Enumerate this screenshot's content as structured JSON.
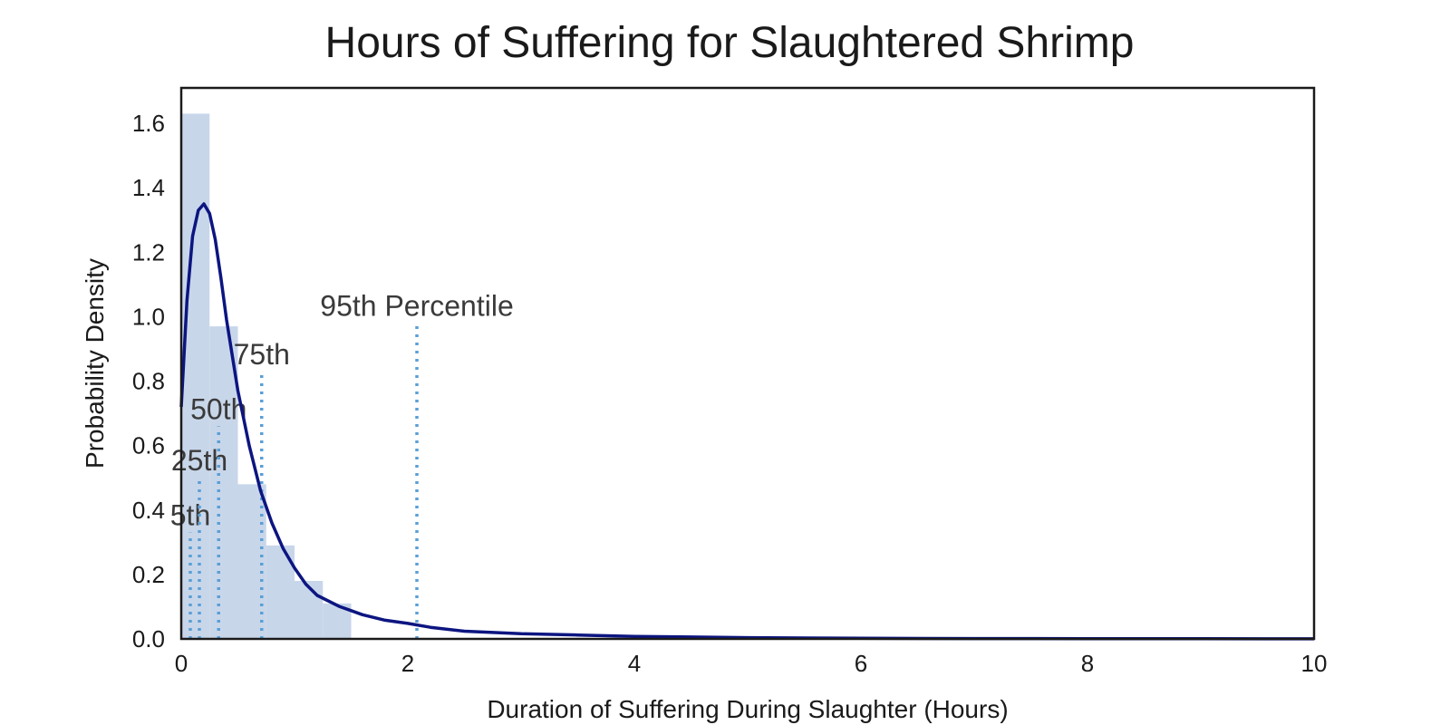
{
  "chart_data": {
    "type": "bar",
    "title": "Hours of Suffering for Slaughtered Shrimp",
    "xlabel": "Duration of Suffering During Slaughter (Hours)",
    "ylabel": "Probability Density",
    "xlim": [
      0,
      10
    ],
    "ylim": [
      0,
      1.71
    ],
    "xticks": [
      "0",
      "2",
      "4",
      "6",
      "8",
      "10"
    ],
    "yticks": [
      "0.0",
      "0.2",
      "0.4",
      "0.6",
      "0.8",
      "1.0",
      "1.2",
      "1.4",
      "1.6"
    ],
    "grid": false,
    "histogram": {
      "bin_width": 0.25,
      "bin_starts": [
        0,
        0.25,
        0.5,
        0.75,
        1.0,
        1.25
      ],
      "values": [
        1.63,
        0.97,
        0.48,
        0.29,
        0.18,
        0.11
      ],
      "color": "#c8d6ea"
    },
    "density_curve": {
      "color": "#0c1580",
      "x": [
        0,
        0.05,
        0.1,
        0.15,
        0.2,
        0.25,
        0.3,
        0.35,
        0.4,
        0.5,
        0.6,
        0.7,
        0.8,
        0.9,
        1.0,
        1.1,
        1.2,
        1.4,
        1.6,
        1.8,
        2.0,
        2.2,
        2.5,
        3.0,
        3.5,
        4.0,
        5.0,
        6.0,
        7.0,
        8.0,
        9.0,
        10.0
      ],
      "y": [
        0.72,
        1.05,
        1.25,
        1.33,
        1.35,
        1.32,
        1.24,
        1.12,
        0.99,
        0.77,
        0.6,
        0.46,
        0.36,
        0.28,
        0.22,
        0.17,
        0.135,
        0.1,
        0.075,
        0.058,
        0.048,
        0.036,
        0.024,
        0.016,
        0.012,
        0.008,
        0.004,
        0.002,
        0.001,
        0.0008,
        0.0005,
        0.0003
      ]
    },
    "percentiles": {
      "color": "#5a9fd6",
      "items": [
        {
          "label": "5th",
          "x": 0.08,
          "height": 0.33
        },
        {
          "label": "25th",
          "x": 0.16,
          "height": 0.5
        },
        {
          "label": "50th",
          "x": 0.33,
          "height": 0.66
        },
        {
          "label": "75th",
          "x": 0.71,
          "height": 0.83
        },
        {
          "label": "95th Percentile",
          "x": 2.08,
          "height": 0.98
        }
      ]
    }
  }
}
